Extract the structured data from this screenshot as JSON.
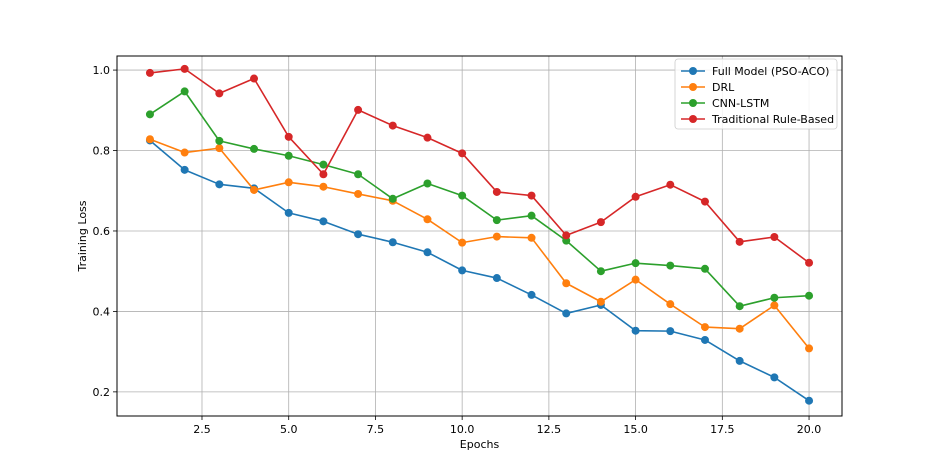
{
  "chart_data": {
    "type": "line",
    "title": "",
    "xlabel": "Epochs",
    "ylabel": "Training Loss",
    "xlim": [
      0.05,
      20.95
    ],
    "ylim": [
      0.14,
      1.035
    ],
    "x": [
      1,
      2,
      3,
      4,
      5,
      6,
      7,
      8,
      9,
      10,
      11,
      12,
      13,
      14,
      15,
      16,
      17,
      18,
      19,
      20
    ],
    "xticks": [
      2.5,
      5.0,
      7.5,
      10.0,
      12.5,
      15.0,
      17.5,
      20.0
    ],
    "xtick_labels": [
      "2.5",
      "5.0",
      "7.5",
      "10.0",
      "12.5",
      "15.0",
      "17.5",
      "20.0"
    ],
    "yticks": [
      0.2,
      0.4,
      0.6,
      0.8,
      1.0
    ],
    "ytick_labels": [
      "0.2",
      "0.4",
      "0.6",
      "0.8",
      "1.0"
    ],
    "grid": true,
    "legend_position": "top-right",
    "series": [
      {
        "name": "Full Model (PSO-ACO)",
        "color": "#1f77b4",
        "values": [
          0.825,
          0.752,
          0.716,
          0.706,
          0.645,
          0.624,
          0.592,
          0.572,
          0.547,
          0.502,
          0.483,
          0.441,
          0.395,
          0.416,
          0.352,
          0.351,
          0.329,
          0.277,
          0.236,
          0.178
        ]
      },
      {
        "name": "DRL",
        "color": "#ff7f0e",
        "values": [
          0.828,
          0.795,
          0.806,
          0.702,
          0.721,
          0.71,
          0.692,
          0.675,
          0.629,
          0.571,
          0.586,
          0.583,
          0.47,
          0.424,
          0.479,
          0.418,
          0.361,
          0.357,
          0.415,
          0.308
        ]
      },
      {
        "name": "CNN-LSTM",
        "color": "#2ca02c",
        "values": [
          0.89,
          0.947,
          0.824,
          0.804,
          0.787,
          0.765,
          0.741,
          0.68,
          0.718,
          0.688,
          0.627,
          0.638,
          0.576,
          0.5,
          0.52,
          0.514,
          0.506,
          0.413,
          0.434,
          0.439
        ]
      },
      {
        "name": "Traditional Rule-Based",
        "color": "#d62728",
        "values": [
          0.993,
          1.003,
          0.942,
          0.979,
          0.834,
          0.741,
          0.901,
          0.862,
          0.832,
          0.793,
          0.697,
          0.688,
          0.589,
          0.622,
          0.685,
          0.715,
          0.673,
          0.573,
          0.585,
          0.521
        ]
      }
    ]
  }
}
